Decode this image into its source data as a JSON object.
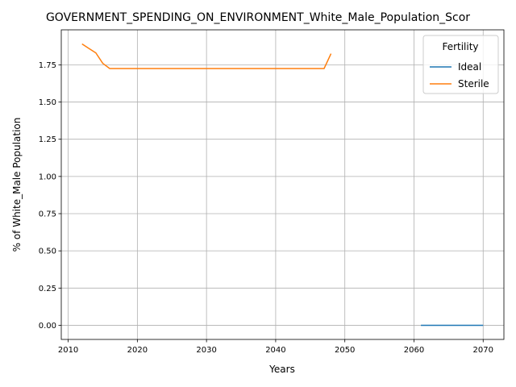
{
  "chart_data": {
    "type": "line",
    "title": "GOVERNMENT_SPENDING_ON_ENVIRONMENT_White_Male_Population_Scor",
    "xlabel": "Years",
    "ylabel": "% of White_Male Population",
    "xlim": [
      2009,
      2073
    ],
    "ylim": [
      -0.095,
      1.985
    ],
    "x_ticks": [
      2010,
      2020,
      2030,
      2040,
      2050,
      2060,
      2070
    ],
    "x_tick_labels": [
      "2010",
      "2020",
      "2030",
      "2040",
      "2050",
      "2060",
      "2070"
    ],
    "y_ticks": [
      0.0,
      0.25,
      0.5,
      0.75,
      1.0,
      1.25,
      1.5,
      1.75
    ],
    "y_tick_labels": [
      "0.00",
      "0.25",
      "0.50",
      "0.75",
      "1.00",
      "1.25",
      "1.50",
      "1.75"
    ],
    "grid": true,
    "legend": {
      "title": "Fertility",
      "placement": "top-right"
    },
    "series": [
      {
        "name": "Ideal",
        "color": "#1f77b4",
        "x": [
          2061,
          2062,
          2063,
          2064,
          2065,
          2066,
          2067,
          2068,
          2069,
          2070
        ],
        "y": [
          0,
          0,
          0,
          0,
          0,
          0,
          0,
          0,
          0,
          0
        ]
      },
      {
        "name": "Sterile",
        "color": "#ff7f0e",
        "x": [
          2012,
          2013,
          2014,
          2015,
          2016,
          2017,
          2018,
          2019,
          2020,
          2021,
          2022,
          2023,
          2024,
          2025,
          2026,
          2027,
          2028,
          2029,
          2030,
          2031,
          2032,
          2033,
          2034,
          2035,
          2036,
          2037,
          2038,
          2039,
          2040,
          2041,
          2042,
          2043,
          2044,
          2045,
          2046,
          2047,
          2048
        ],
        "y": [
          1.89,
          1.86,
          1.83,
          1.76,
          1.725,
          1.725,
          1.725,
          1.725,
          1.725,
          1.725,
          1.725,
          1.725,
          1.725,
          1.725,
          1.725,
          1.725,
          1.725,
          1.725,
          1.725,
          1.725,
          1.725,
          1.725,
          1.725,
          1.725,
          1.725,
          1.725,
          1.725,
          1.725,
          1.725,
          1.725,
          1.725,
          1.725,
          1.725,
          1.725,
          1.725,
          1.725,
          1.825
        ]
      }
    ]
  }
}
